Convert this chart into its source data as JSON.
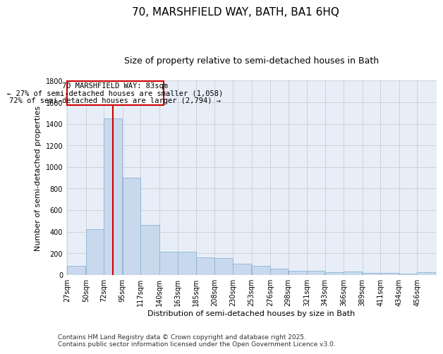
{
  "title": "70, MARSHFIELD WAY, BATH, BA1 6HQ",
  "subtitle": "Size of property relative to semi-detached houses in Bath",
  "xlabel": "Distribution of semi-detached houses by size in Bath",
  "ylabel": "Number of semi-detached properties",
  "annotation_text_1": "70 MARSHFIELD WAY: 83sqm",
  "annotation_text_2": "← 27% of semi-detached houses are smaller (1,058)",
  "annotation_text_3": "72% of semi-detached houses are larger (2,794) →",
  "bin_edges": [
    27,
    50,
    72,
    95,
    117,
    140,
    163,
    185,
    208,
    230,
    253,
    276,
    298,
    321,
    343,
    366,
    389,
    411,
    434,
    456,
    479
  ],
  "bar_heights": [
    80,
    420,
    1450,
    900,
    460,
    215,
    215,
    160,
    155,
    100,
    80,
    55,
    40,
    35,
    25,
    30,
    20,
    18,
    10,
    25
  ],
  "bar_color": "#c9d9ed",
  "bar_edgecolor": "#8ab4d4",
  "vline_color": "#cc0000",
  "vline_x": 83,
  "ylim": [
    0,
    1800
  ],
  "yticks": [
    0,
    200,
    400,
    600,
    800,
    1000,
    1200,
    1400,
    1600,
    1800
  ],
  "grid_color": "#cccccc",
  "background_color": "#e8eef8",
  "footnote_line1": "Contains HM Land Registry data © Crown copyright and database right 2025.",
  "footnote_line2": "Contains public sector information licensed under the Open Government Licence v3.0.",
  "box_color": "#ffffff",
  "box_edgecolor": "#cc0000",
  "title_fontsize": 11,
  "subtitle_fontsize": 9,
  "label_fontsize": 8,
  "tick_fontsize": 7,
  "annotation_fontsize": 7.5,
  "footnote_fontsize": 6.5
}
